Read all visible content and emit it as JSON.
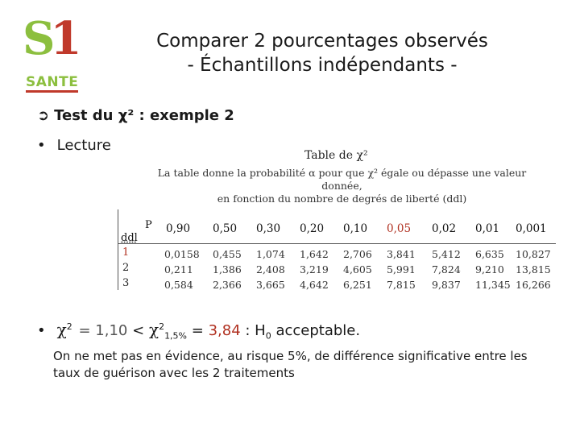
{
  "logo": {
    "mark": "S1",
    "word": "SANTE"
  },
  "title": {
    "line1": "Comparer 2 pourcentages observés",
    "line2": "- Échantillons indépendants -"
  },
  "bullets": {
    "b1_text": "Test du χ² : exemple 2",
    "b2_text": "Lecture"
  },
  "table": {
    "title": "Table de χ²",
    "desc1": "La table donne la probabilité α pour que χ² égale ou dépasse une valeur donnée,",
    "desc2": "en fonction du nombre de degrés de liberté (ddl)",
    "p_label": "P",
    "ddl_label": "ddl",
    "headers": [
      "0,90",
      "0,50",
      "0,30",
      "0,20",
      "0,10",
      "0,05",
      "0,02",
      "0,01",
      "0,001"
    ],
    "rows": [
      {
        "ddl": "1",
        "values": [
          "0,0158",
          "0,455",
          "1,074",
          "1,642",
          "2,706",
          "3,841",
          "5,412",
          "6,635",
          "10,827"
        ]
      },
      {
        "ddl": "2",
        "values": [
          "0,211",
          "1,386",
          "2,408",
          "3,219",
          "4,605",
          "5,991",
          "7,824",
          "9,210",
          "13,815"
        ]
      },
      {
        "ddl": "3",
        "values": [
          "0,584",
          "2,366",
          "3,665",
          "4,642",
          "6,251",
          "7,815",
          "9,837",
          "11,345",
          "16,266"
        ]
      }
    ],
    "highlight_color": "#b03020"
  },
  "formula": {
    "chi": "χ",
    "sup": "2",
    "eq_value": "= 1,10",
    "lt": "<",
    "chi2": "χ",
    "sup2": "2",
    "sub2": "1,5%",
    "eq2": "=",
    "critical": "3,84",
    "result_prefix": ": H",
    "h_sub": "0",
    "result_suffix": "acceptable",
    "trailing": "."
  },
  "conclusion": "On ne met pas en évidence, au risque 5%, de différence significative entre les taux de guérison avec les 2 traitements"
}
